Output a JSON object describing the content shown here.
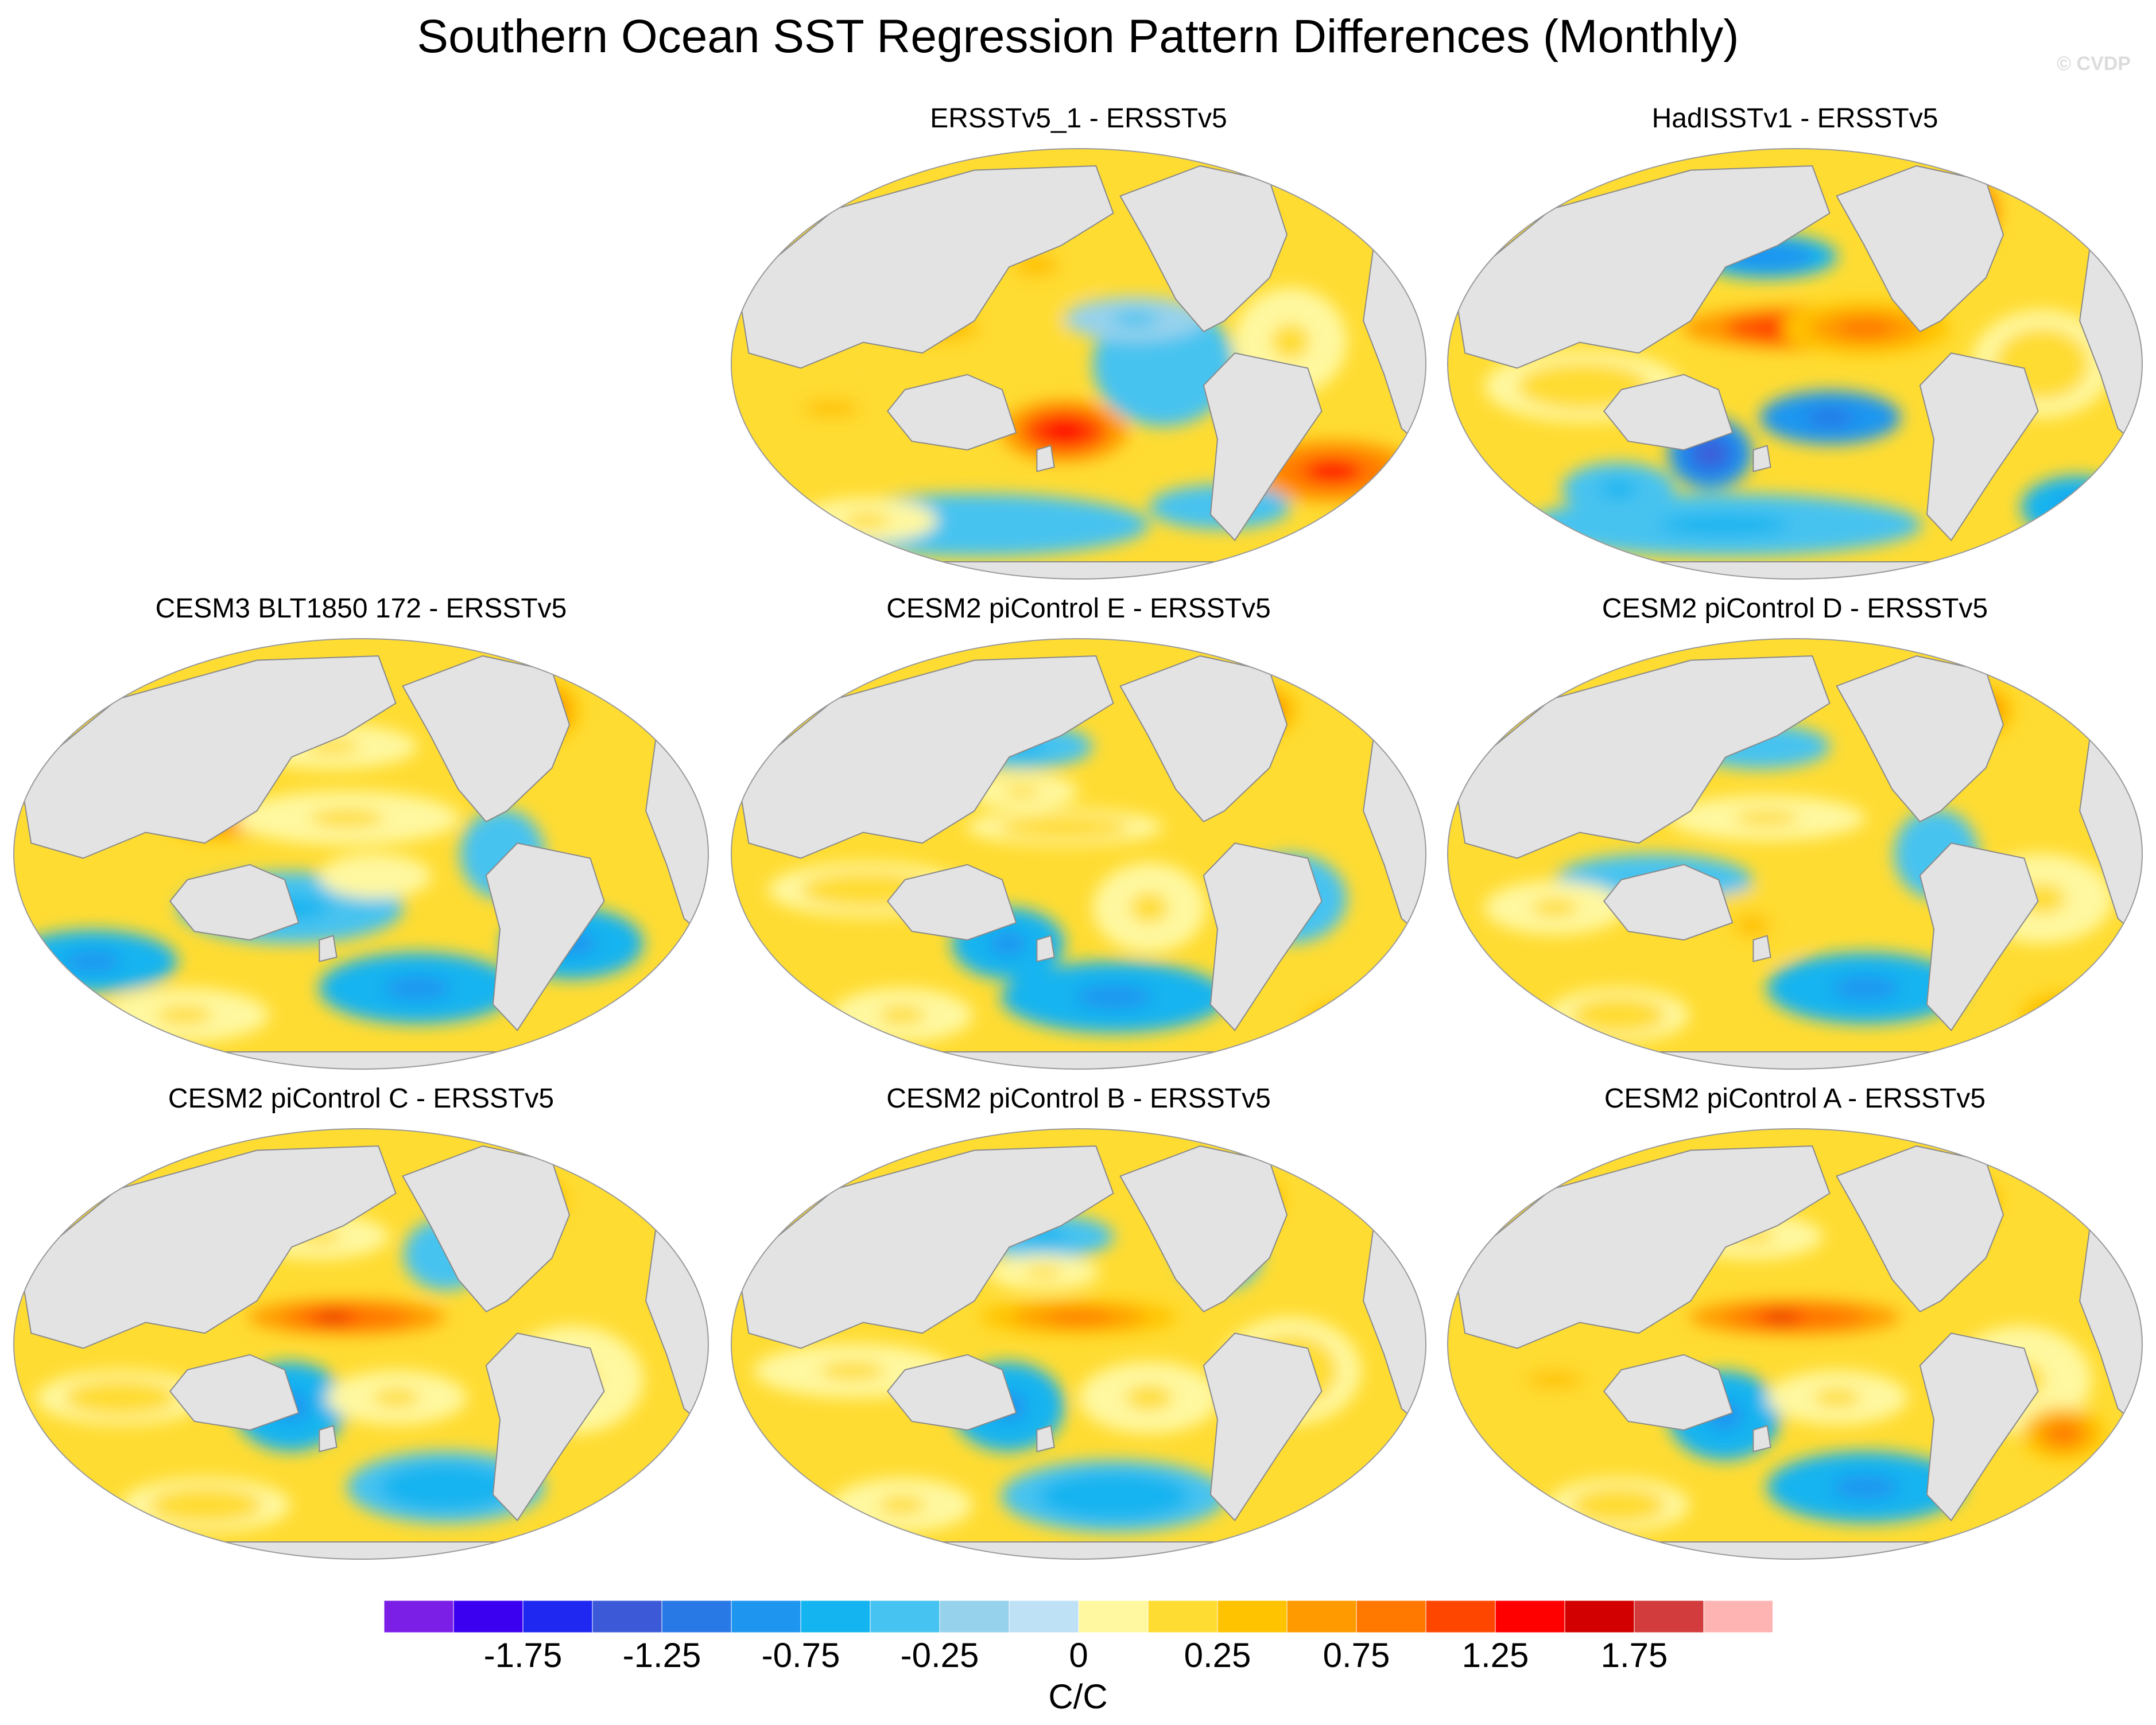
{
  "title": "Southern Ocean SST Regression Pattern Differences (Monthly)",
  "watermark": "© CVDP",
  "panels": [
    {
      "id": "p1",
      "title": "ERSSTv5_1 - ERSSTv5",
      "blobs": [
        [
          0.44,
          0.28,
          0.1,
          0.08,
          0.8
        ],
        [
          0.3,
          0.42,
          0.18,
          0.1,
          0.8
        ],
        [
          0.48,
          0.65,
          0.09,
          0.07,
          1.9
        ],
        [
          0.15,
          0.6,
          0.12,
          0.06,
          0.9
        ],
        [
          0.86,
          0.74,
          0.12,
          0.07,
          1.8
        ],
        [
          0.72,
          0.2,
          0.05,
          0.05,
          1.7
        ],
        [
          0.62,
          0.5,
          0.1,
          0.14,
          -0.4
        ],
        [
          0.35,
          0.86,
          0.25,
          0.07,
          -0.5
        ],
        [
          0.58,
          0.4,
          0.1,
          0.05,
          -0.3
        ],
        [
          0.8,
          0.45,
          0.08,
          0.12,
          0.6
        ],
        [
          0.7,
          0.82,
          0.1,
          0.05,
          -0.4
        ],
        [
          0.2,
          0.85,
          0.1,
          0.05,
          0.5
        ]
      ]
    },
    {
      "id": "p2",
      "title": "HadISSTv1 - ERSSTv5",
      "blobs": [
        [
          0.52,
          0.42,
          0.18,
          0.05,
          1.9
        ],
        [
          0.6,
          0.42,
          0.12,
          0.06,
          1.3
        ],
        [
          0.74,
          0.16,
          0.05,
          0.08,
          1.7
        ],
        [
          0.46,
          0.26,
          0.1,
          0.05,
          -1.0
        ],
        [
          0.55,
          0.62,
          0.1,
          0.06,
          -1.2
        ],
        [
          0.38,
          0.7,
          0.06,
          0.08,
          -1.4
        ],
        [
          0.2,
          0.55,
          0.14,
          0.08,
          0.7
        ],
        [
          0.4,
          0.86,
          0.28,
          0.07,
          -0.6
        ],
        [
          0.85,
          0.5,
          0.1,
          0.12,
          0.7
        ],
        [
          0.9,
          0.82,
          0.08,
          0.07,
          -0.8
        ],
        [
          0.25,
          0.78,
          0.08,
          0.06,
          -0.6
        ]
      ]
    },
    {
      "id": "p3",
      "title": "CESM3 BLT1850 172 - ERSSTv5",
      "blobs": [
        [
          0.3,
          0.42,
          0.08,
          0.05,
          1.4
        ],
        [
          0.48,
          0.42,
          0.16,
          0.06,
          0.6
        ],
        [
          0.46,
          0.26,
          0.12,
          0.05,
          0.5
        ],
        [
          0.4,
          0.62,
          0.16,
          0.08,
          -0.6
        ],
        [
          0.58,
          0.8,
          0.14,
          0.08,
          -0.9
        ],
        [
          0.12,
          0.74,
          0.12,
          0.07,
          -0.9
        ],
        [
          0.8,
          0.7,
          0.1,
          0.08,
          -0.8
        ],
        [
          0.76,
          0.18,
          0.05,
          0.07,
          1.4
        ],
        [
          0.52,
          0.55,
          0.08,
          0.05,
          0.4
        ],
        [
          0.25,
          0.86,
          0.12,
          0.06,
          0.6
        ],
        [
          0.7,
          0.5,
          0.06,
          0.1,
          -0.5
        ]
      ]
    },
    {
      "id": "p4",
      "title": "CESM2 piControl E - ERSSTv5",
      "blobs": [
        [
          0.48,
          0.44,
          0.14,
          0.04,
          0.7
        ],
        [
          0.42,
          0.26,
          0.1,
          0.05,
          -0.6
        ],
        [
          0.42,
          0.36,
          0.08,
          0.04,
          0.6
        ],
        [
          0.2,
          0.58,
          0.14,
          0.06,
          0.7
        ],
        [
          0.4,
          0.7,
          0.08,
          0.08,
          -0.9
        ],
        [
          0.6,
          0.62,
          0.08,
          0.1,
          0.5
        ],
        [
          0.55,
          0.82,
          0.16,
          0.08,
          -0.8
        ],
        [
          0.8,
          0.6,
          0.08,
          0.1,
          -0.6
        ],
        [
          0.76,
          0.18,
          0.05,
          0.06,
          1.5
        ],
        [
          0.88,
          0.88,
          0.06,
          0.05,
          1.2
        ],
        [
          0.25,
          0.86,
          0.1,
          0.06,
          0.6
        ]
      ]
    },
    {
      "id": "p5",
      "title": "CESM2 piControl D - ERSSTv5",
      "blobs": [
        [
          0.46,
          0.42,
          0.14,
          0.05,
          0.6
        ],
        [
          0.45,
          0.26,
          0.1,
          0.05,
          -0.5
        ],
        [
          0.3,
          0.56,
          0.14,
          0.06,
          -0.4
        ],
        [
          0.44,
          0.66,
          0.08,
          0.08,
          0.8
        ],
        [
          0.6,
          0.8,
          0.14,
          0.08,
          -0.9
        ],
        [
          0.16,
          0.62,
          0.1,
          0.06,
          0.5
        ],
        [
          0.76,
          0.18,
          0.05,
          0.06,
          1.4
        ],
        [
          0.85,
          0.6,
          0.1,
          0.1,
          0.5
        ],
        [
          0.25,
          0.86,
          0.1,
          0.06,
          0.7
        ],
        [
          0.88,
          0.86,
          0.06,
          0.05,
          1.2
        ],
        [
          0.7,
          0.5,
          0.06,
          0.1,
          -0.5
        ]
      ]
    },
    {
      "id": "p6",
      "title": "CESM2 piControl C - ERSSTv5",
      "blobs": [
        [
          0.48,
          0.44,
          0.14,
          0.04,
          1.6
        ],
        [
          0.46,
          0.44,
          0.06,
          0.025,
          2.1
        ],
        [
          0.44,
          0.26,
          0.1,
          0.05,
          0.6
        ],
        [
          0.4,
          0.64,
          0.08,
          0.1,
          -0.9
        ],
        [
          0.55,
          0.62,
          0.1,
          0.06,
          0.6
        ],
        [
          0.62,
          0.82,
          0.14,
          0.08,
          -0.7
        ],
        [
          0.16,
          0.62,
          0.12,
          0.06,
          0.7
        ],
        [
          0.8,
          0.58,
          0.1,
          0.12,
          0.6
        ],
        [
          0.74,
          0.18,
          0.05,
          0.06,
          1.3
        ],
        [
          0.28,
          0.86,
          0.12,
          0.06,
          0.7
        ],
        [
          0.62,
          0.3,
          0.06,
          0.08,
          -0.4
        ]
      ]
    },
    {
      "id": "p7",
      "title": "CESM2 piControl B - ERSSTv5",
      "blobs": [
        [
          0.5,
          0.44,
          0.14,
          0.04,
          1.3
        ],
        [
          0.45,
          0.26,
          0.1,
          0.05,
          -0.6
        ],
        [
          0.45,
          0.34,
          0.08,
          0.04,
          0.6
        ],
        [
          0.4,
          0.64,
          0.08,
          0.1,
          -0.9
        ],
        [
          0.6,
          0.62,
          0.1,
          0.08,
          0.5
        ],
        [
          0.55,
          0.84,
          0.16,
          0.08,
          -0.7
        ],
        [
          0.18,
          0.56,
          0.14,
          0.06,
          0.6
        ],
        [
          0.8,
          0.56,
          0.1,
          0.12,
          0.7
        ],
        [
          0.74,
          0.18,
          0.05,
          0.06,
          1.4
        ],
        [
          0.25,
          0.86,
          0.1,
          0.06,
          0.5
        ],
        [
          0.7,
          0.3,
          0.06,
          0.08,
          -0.5
        ]
      ]
    },
    {
      "id": "p8",
      "title": "CESM2 piControl A - ERSSTv5",
      "blobs": [
        [
          0.5,
          0.44,
          0.15,
          0.04,
          1.6
        ],
        [
          0.48,
          0.44,
          0.06,
          0.025,
          2.1
        ],
        [
          0.44,
          0.26,
          0.1,
          0.05,
          0.6
        ],
        [
          0.4,
          0.66,
          0.08,
          0.1,
          -0.9
        ],
        [
          0.56,
          0.62,
          0.1,
          0.06,
          0.6
        ],
        [
          0.6,
          0.82,
          0.14,
          0.08,
          -0.8
        ],
        [
          0.16,
          0.58,
          0.12,
          0.06,
          0.8
        ],
        [
          0.82,
          0.58,
          0.1,
          0.12,
          0.6
        ],
        [
          0.74,
          0.18,
          0.05,
          0.06,
          1.3
        ],
        [
          0.25,
          0.86,
          0.1,
          0.06,
          0.7
        ],
        [
          0.88,
          0.7,
          0.06,
          0.06,
          1.3
        ]
      ]
    }
  ],
  "colorbar": {
    "colors": [
      "#7b1ee6",
      "#3c00f0",
      "#1e28f0",
      "#3c5ad8",
      "#2878e6",
      "#1e96f0",
      "#14b4f0",
      "#46c3f0",
      "#96d2ec",
      "#bee1f5",
      "#fff8a0",
      "#ffdc32",
      "#ffc300",
      "#ff9b00",
      "#ff7800",
      "#ff4600",
      "#ff0000",
      "#d20000",
      "#d23c3c",
      "#ffb4b4"
    ],
    "labels": [
      "-1.75",
      "-1.25",
      "-0.75",
      "-0.25",
      "0",
      "0.25",
      "0.75",
      "1.25",
      "1.75"
    ],
    "units": "C/C"
  }
}
